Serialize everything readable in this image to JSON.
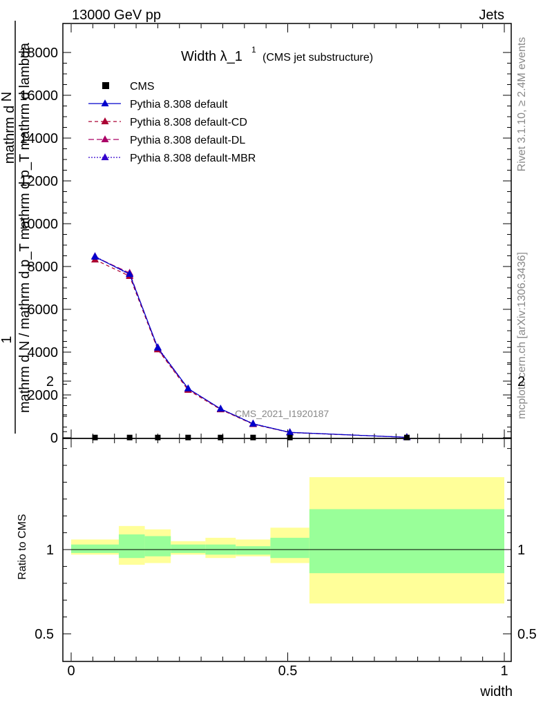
{
  "header": {
    "left": "13000 GeV pp",
    "right": "Jets"
  },
  "side": {
    "rivet": "Rivet 3.1.10, ≥ 2.4M events",
    "mcplots": "mcplots.cern.ch [arXiv:1306.3436]"
  },
  "title": {
    "main": "Width λ_1",
    "sup": "1",
    "sub": "(CMS jet substructure)"
  },
  "watermark": "CMS_2021_I1920187",
  "ylabel": {
    "num": "1",
    "den": "mathrm d N / mathrm d p_T mathrm d p_T mathrm d lambda",
    "top1": "mathrm d",
    "top2": "N"
  },
  "ratio_ylabel": "Ratio to CMS",
  "xlabel": "width",
  "colors": {
    "mc": "#0000cc",
    "cd": "#aa0033",
    "dl": "#aa0066",
    "mbr": "#3300cc",
    "band_inner": "#99ff99",
    "band_outer": "#ffff99"
  },
  "chart_data": [
    {
      "type": "line",
      "panel": "main",
      "xlim": [
        0,
        1
      ],
      "ylim": [
        0,
        19000
      ],
      "x_ticks": [
        "0",
        "0.5",
        "1"
      ],
      "y_ticks": [
        "0",
        "2000",
        "4000",
        "6000",
        "8000",
        "10000",
        "12000",
        "14000",
        "16000",
        "18000"
      ],
      "legend": [
        "CMS",
        "Pythia 8.308 default",
        "Pythia 8.308 default-CD",
        "Pythia 8.308 default-DL",
        "Pythia 8.308 default-MBR"
      ],
      "legend_position": "top-left",
      "x": [
        0.055,
        0.135,
        0.2,
        0.27,
        0.345,
        0.42,
        0.505,
        0.775
      ],
      "series": [
        {
          "name": "CMS",
          "values": [
            10,
            10,
            10,
            10,
            10,
            10,
            10,
            10
          ]
        },
        {
          "name": "Pythia 8.308 default",
          "values": [
            8450,
            7650,
            4200,
            2300,
            1350,
            650,
            250,
            20
          ]
        },
        {
          "name": "Pythia 8.308 default-CD",
          "values": [
            8320,
            7550,
            4120,
            2230,
            1320,
            630,
            240,
            20
          ]
        },
        {
          "name": "Pythia 8.308 default-DL",
          "values": [
            8450,
            7700,
            4150,
            2280,
            1340,
            640,
            250,
            20
          ]
        },
        {
          "name": "Pythia 8.308 default-MBR",
          "values": [
            8480,
            7620,
            4220,
            2300,
            1350,
            660,
            250,
            20
          ]
        }
      ]
    },
    {
      "type": "area",
      "panel": "ratio",
      "ylabel": "Ratio to CMS",
      "xlabel": "width",
      "xlim": [
        0,
        1
      ],
      "ylim": [
        0.4,
        2.3
      ],
      "y_ticks": [
        "0.5",
        "1",
        "2"
      ],
      "bins": [
        [
          0.0,
          0.11
        ],
        [
          0.11,
          0.17
        ],
        [
          0.17,
          0.23
        ],
        [
          0.23,
          0.31
        ],
        [
          0.31,
          0.38
        ],
        [
          0.38,
          0.46
        ],
        [
          0.46,
          0.55
        ],
        [
          0.55,
          1.0
        ]
      ],
      "stat_band": [
        [
          0.98,
          1.03
        ],
        [
          0.95,
          1.09
        ],
        [
          0.96,
          1.08
        ],
        [
          0.98,
          1.03
        ],
        [
          0.97,
          1.03
        ],
        [
          0.97,
          1.02
        ],
        [
          0.95,
          1.07
        ],
        [
          0.86,
          1.24
        ]
      ],
      "total_band": [
        [
          0.97,
          1.06
        ],
        [
          0.91,
          1.14
        ],
        [
          0.92,
          1.12
        ],
        [
          0.97,
          1.05
        ],
        [
          0.95,
          1.07
        ],
        [
          0.96,
          1.06
        ],
        [
          0.92,
          1.13
        ],
        [
          0.68,
          1.43
        ]
      ],
      "reference": 1
    }
  ]
}
